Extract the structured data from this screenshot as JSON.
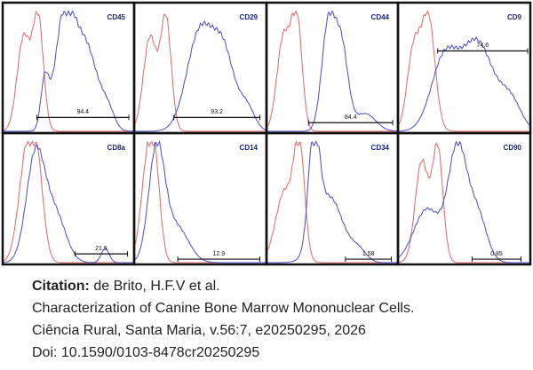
{
  "panels": [
    {
      "label": "CD45",
      "gate": 94.4
    },
    {
      "label": "CD29",
      "gate": 93.2
    },
    {
      "label": "CD44",
      "gate": 84.4
    },
    {
      "label": "CD9",
      "gate": 74.6
    },
    {
      "label": "CD8a",
      "gate": 21.5
    },
    {
      "label": "CD14",
      "gate": 12.9
    },
    {
      "label": "CD34",
      "gate": 1.58
    },
    {
      "label": "CD90",
      "gate": 0.85
    }
  ],
  "citation": {
    "label": "Citation:",
    "authors": "de Brito, H.F.V et al.",
    "title": "Characterization of Canine Bone Marrow Mononuclear Cells.",
    "journal": "Ciência Rural, Santa Maria, v.56:7, e20250295, 2026",
    "doi": "Doi: 10.1590/0103-8478cr20250295"
  }
}
